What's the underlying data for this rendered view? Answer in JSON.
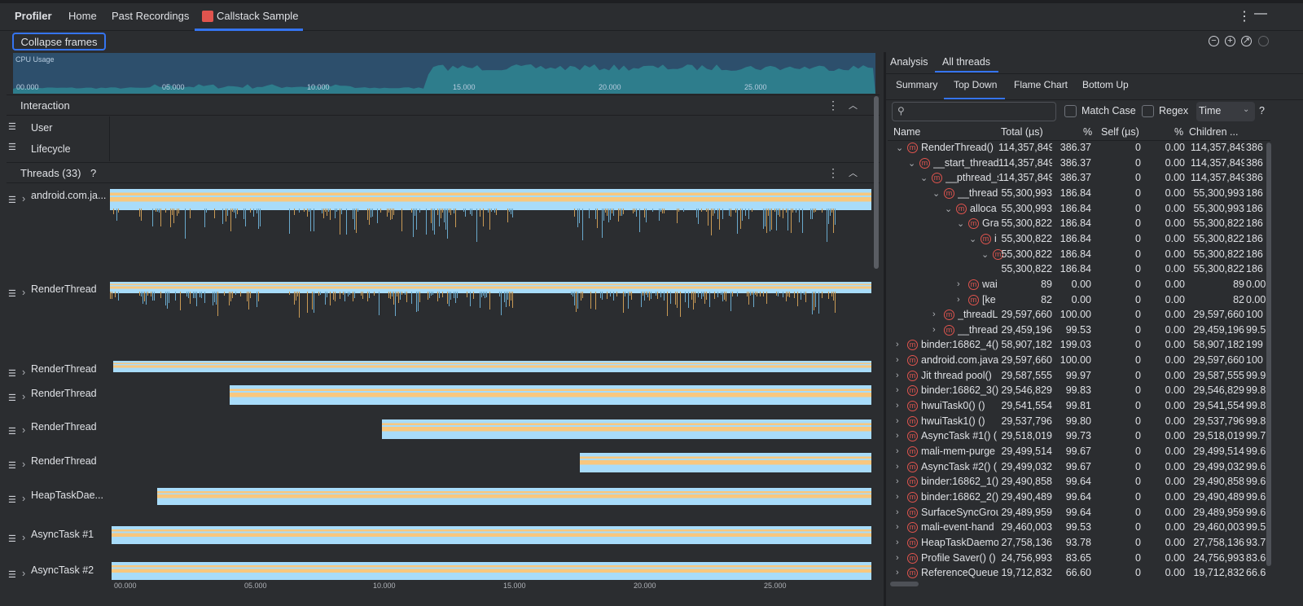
{
  "header": {
    "app": "Profiler",
    "tabs": [
      "Home",
      "Past Recordings",
      "Callstack Sample"
    ]
  },
  "toolbar": {
    "collapse_label": "Collapse frames",
    "icons": [
      "zoom-out-icon",
      "zoom-in-icon",
      "reset-zoom-icon",
      "attach-icon"
    ]
  },
  "cpu": {
    "title": "CPU Usage",
    "ticks": [
      "00.000",
      "05.000",
      "10.000",
      "15.000",
      "20.000",
      "25.000"
    ]
  },
  "interaction": {
    "title": "Interaction",
    "rows": [
      "User",
      "Lifecycle"
    ]
  },
  "threads": {
    "title": "Threads (33)",
    "help": "?",
    "rows": [
      "android.com.ja...",
      "RenderThread",
      "RenderThread",
      "RenderThread",
      "RenderThread",
      "RenderThread",
      "HeapTaskDae...",
      "AsyncTask #1",
      "AsyncTask #2"
    ]
  },
  "axis": {
    "ticks": [
      "00.000",
      "05.000",
      "10.000",
      "15.000",
      "20.000",
      "25.000"
    ]
  },
  "right": {
    "tabs": [
      "Analysis",
      "All threads"
    ],
    "subtabs": [
      "Summary",
      "Top Down",
      "Flame Chart",
      "Bottom Up"
    ],
    "search_placeholder": "",
    "match_case": "Match Case",
    "regex": "Regex",
    "select": "Time",
    "help": "?",
    "columns": [
      "Name",
      "Total (µs)",
      "%",
      "Self (µs)",
      "%",
      "Children ..."
    ],
    "rows": [
      {
        "d": 0,
        "exp": "v",
        "name": "RenderThread()",
        "total": "114,357,849",
        "pct": "386.37",
        "self": "0",
        "spct": "0.00",
        "children": "114,357,849",
        "cpct": "386"
      },
      {
        "d": 1,
        "exp": "v",
        "name": "__start_thread",
        "total": "114,357,849",
        "pct": "386.37",
        "self": "0",
        "spct": "0.00",
        "children": "114,357,849",
        "cpct": "386"
      },
      {
        "d": 2,
        "exp": "v",
        "name": "__pthread_s",
        "total": "114,357,849",
        "pct": "386.37",
        "self": "0",
        "spct": "0.00",
        "children": "114,357,849",
        "cpct": "386"
      },
      {
        "d": 3,
        "exp": "v",
        "name": "__thread",
        "total": "55,300,993",
        "pct": "186.84",
        "self": "0",
        "spct": "0.00",
        "children": "55,300,993",
        "cpct": "186"
      },
      {
        "d": 4,
        "exp": "v",
        "name": "alloca",
        "total": "55,300,993",
        "pct": "186.84",
        "self": "0",
        "spct": "0.00",
        "children": "55,300,993",
        "cpct": "186"
      },
      {
        "d": 5,
        "exp": "v",
        "name": "Gra",
        "total": "55,300,822",
        "pct": "186.84",
        "self": "0",
        "spct": "0.00",
        "children": "55,300,822",
        "cpct": "186"
      },
      {
        "d": 6,
        "exp": "v",
        "name": "i",
        "total": "55,300,822",
        "pct": "186.84",
        "self": "0",
        "spct": "0.00",
        "children": "55,300,822",
        "cpct": "186"
      },
      {
        "d": 7,
        "exp": "v",
        "name": "",
        "total": "55,300,822",
        "pct": "186.84",
        "self": "0",
        "spct": "0.00",
        "children": "55,300,822",
        "cpct": "186"
      },
      {
        "d": 8,
        "exp": "",
        "name": "",
        "total": "55,300,822",
        "pct": "186.84",
        "self": "0",
        "spct": "0.00",
        "children": "55,300,822",
        "cpct": "186"
      },
      {
        "d": 5,
        "exp": ">",
        "name": "wai",
        "total": "89",
        "pct": "0.00",
        "self": "0",
        "spct": "0.00",
        "children": "89",
        "cpct": "0.00"
      },
      {
        "d": 5,
        "exp": ">",
        "name": "[ke",
        "total": "82",
        "pct": "0.00",
        "self": "0",
        "spct": "0.00",
        "children": "82",
        "cpct": "0.00"
      },
      {
        "d": 3,
        "exp": ">",
        "name": "_threadL",
        "total": "29,597,660",
        "pct": "100.00",
        "self": "0",
        "spct": "0.00",
        "children": "29,597,660",
        "cpct": "100"
      },
      {
        "d": 3,
        "exp": ">",
        "name": "__thread",
        "total": "29,459,196",
        "pct": "99.53",
        "self": "0",
        "spct": "0.00",
        "children": "29,459,196",
        "cpct": "99.5"
      },
      {
        "d": 0,
        "exp": ">",
        "name": "binder:16862_4()",
        "total": "58,907,182",
        "pct": "199.03",
        "self": "0",
        "spct": "0.00",
        "children": "58,907,182",
        "cpct": "199"
      },
      {
        "d": 0,
        "exp": ">",
        "name": "android.com.java",
        "total": "29,597,660",
        "pct": "100.00",
        "self": "0",
        "spct": "0.00",
        "children": "29,597,660",
        "cpct": "100"
      },
      {
        "d": 0,
        "exp": ">",
        "name": "Jit thread pool()",
        "total": "29,587,555",
        "pct": "99.97",
        "self": "0",
        "spct": "0.00",
        "children": "29,587,555",
        "cpct": "99.9"
      },
      {
        "d": 0,
        "exp": ">",
        "name": "binder:16862_3()",
        "total": "29,546,829",
        "pct": "99.83",
        "self": "0",
        "spct": "0.00",
        "children": "29,546,829",
        "cpct": "99.8"
      },
      {
        "d": 0,
        "exp": ">",
        "name": "hwuiTask0() ()",
        "total": "29,541,554",
        "pct": "99.81",
        "self": "0",
        "spct": "0.00",
        "children": "29,541,554",
        "cpct": "99.8"
      },
      {
        "d": 0,
        "exp": ">",
        "name": "hwuiTask1() ()",
        "total": "29,537,796",
        "pct": "99.80",
        "self": "0",
        "spct": "0.00",
        "children": "29,537,796",
        "cpct": "99.8"
      },
      {
        "d": 0,
        "exp": ">",
        "name": "AsyncTask #1() (",
        "total": "29,518,019",
        "pct": "99.73",
        "self": "0",
        "spct": "0.00",
        "children": "29,518,019",
        "cpct": "99.7"
      },
      {
        "d": 0,
        "exp": ">",
        "name": "mali-mem-purge",
        "total": "29,499,514",
        "pct": "99.67",
        "self": "0",
        "spct": "0.00",
        "children": "29,499,514",
        "cpct": "99.6"
      },
      {
        "d": 0,
        "exp": ">",
        "name": "AsyncTask #2() (",
        "total": "29,499,032",
        "pct": "99.67",
        "self": "0",
        "spct": "0.00",
        "children": "29,499,032",
        "cpct": "99.6"
      },
      {
        "d": 0,
        "exp": ">",
        "name": "binder:16862_1()",
        "total": "29,490,858",
        "pct": "99.64",
        "self": "0",
        "spct": "0.00",
        "children": "29,490,858",
        "cpct": "99.6"
      },
      {
        "d": 0,
        "exp": ">",
        "name": "binder:16862_2()",
        "total": "29,490,489",
        "pct": "99.64",
        "self": "0",
        "spct": "0.00",
        "children": "29,490,489",
        "cpct": "99.6"
      },
      {
        "d": 0,
        "exp": ">",
        "name": "SurfaceSyncGrou",
        "total": "29,489,959",
        "pct": "99.64",
        "self": "0",
        "spct": "0.00",
        "children": "29,489,959",
        "cpct": "99.6"
      },
      {
        "d": 0,
        "exp": ">",
        "name": "mali-event-hand",
        "total": "29,460,003",
        "pct": "99.53",
        "self": "0",
        "spct": "0.00",
        "children": "29,460,003",
        "cpct": "99.5"
      },
      {
        "d": 0,
        "exp": ">",
        "name": "HeapTaskDaemo",
        "total": "27,758,136",
        "pct": "93.78",
        "self": "0",
        "spct": "0.00",
        "children": "27,758,136",
        "cpct": "93.7"
      },
      {
        "d": 0,
        "exp": ">",
        "name": "Profile Saver() ()",
        "total": "24,756,993",
        "pct": "83.65",
        "self": "0",
        "spct": "0.00",
        "children": "24,756,993",
        "cpct": "83.6"
      },
      {
        "d": 0,
        "exp": ">",
        "name": "ReferenceQueue",
        "total": "19,712,832",
        "pct": "66.60",
        "self": "0",
        "spct": "0.00",
        "children": "19,712,832",
        "cpct": "66.6"
      }
    ]
  },
  "colors": {
    "accent": "#3574f0",
    "track_blue": "#a8dcfa",
    "track_orange": "#f8c77e",
    "method_icon": "#e0544e",
    "cpu_bg": "#2d4f6c",
    "cpu_fill": "#2e7d8c"
  }
}
